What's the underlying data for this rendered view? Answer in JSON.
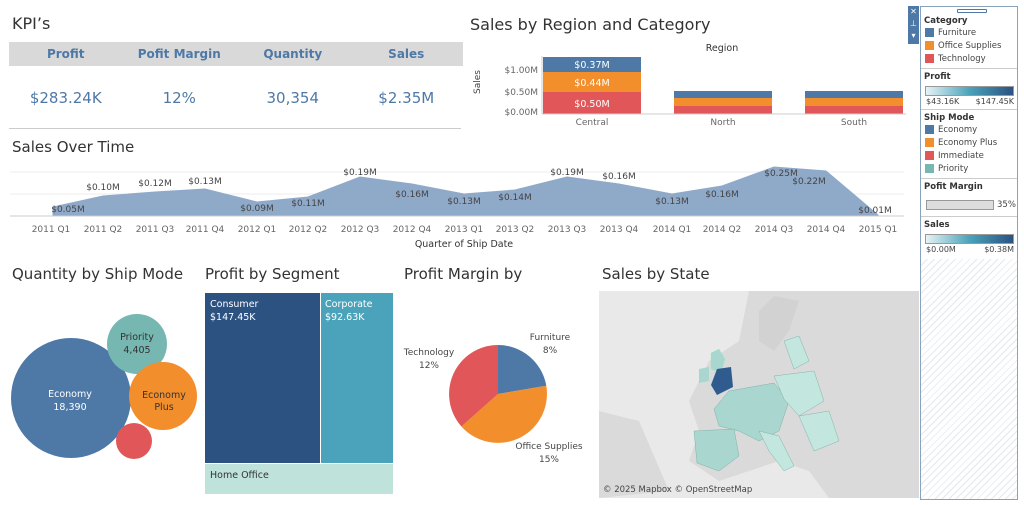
{
  "kpi": {
    "title": "KPI’s",
    "headers": [
      "Profit",
      "Pofit Margin",
      "Quantity",
      "Sales"
    ],
    "values": [
      "$283.24K",
      "12%",
      "30,354",
      "$2.35M"
    ]
  },
  "region_chart": {
    "title": "Sales by Region and Category",
    "header": "Region",
    "ylabel": "Sales",
    "yticks": [
      "$1.00M",
      "$0.50M",
      "$0.00M"
    ],
    "regions": [
      "Central",
      "North",
      "South"
    ],
    "central_labels": [
      "$0.37M",
      "$0.44M",
      "$0.50M"
    ]
  },
  "time_chart": {
    "title": "Sales Over Time",
    "xlabel": "Quarter of Ship Date",
    "quarters": [
      "2011 Q1",
      "2011 Q2",
      "2011 Q3",
      "2011 Q4",
      "2012 Q1",
      "2012 Q2",
      "2012 Q3",
      "2012 Q4",
      "2013 Q1",
      "2013 Q2",
      "2013 Q3",
      "2013 Q4",
      "2014 Q1",
      "2014 Q2",
      "2014 Q3",
      "2014 Q4",
      "2015 Q1"
    ],
    "value_labels": [
      "$0.05M",
      "$0.10M",
      "$0.12M",
      "$0.13M",
      "$0.09M",
      "$0.11M",
      "$0.19M",
      "$0.16M",
      "$0.13M",
      "$0.14M",
      "$0.19M",
      "$0.16M",
      "$0.13M",
      "$0.16M",
      "$0.25M",
      "$0.22M",
      "$0.01M"
    ]
  },
  "ship_mode": {
    "title": "Quantity by Ship Mode",
    "economy_label": "Economy",
    "economy_value": "18,390",
    "priority_label": "Priority",
    "priority_value": "4,405",
    "economy_plus_label_1": "Economy",
    "economy_plus_label_2": "Plus"
  },
  "segment": {
    "title": "Profit by Segment",
    "consumer_label": "Consumer",
    "consumer_value": "$147.45K",
    "corporate_label": "Corporate",
    "corporate_value": "$92.63K",
    "home_office_label": "Home Office"
  },
  "margin": {
    "title": "Profit Margin by",
    "furniture_label": "Furniture",
    "furniture_value": "8%",
    "technology_label": "Technology",
    "technology_value": "12%",
    "office_label": "Office Supplies",
    "office_value": "15%"
  },
  "state": {
    "title": "Sales by State",
    "attribution": "© 2025 Mapbox © OpenStreetMap"
  },
  "legend": {
    "category_title": "Category",
    "categories": [
      "Furniture",
      "Office Supplies",
      "Technology"
    ],
    "profit_title": "Profit",
    "profit_min": "$43.16K",
    "profit_max": "$147.45K",
    "ship_mode_title": "Ship Mode",
    "ship_modes": [
      "Economy",
      "Economy Plus",
      "Immediate",
      "Priority"
    ],
    "margin_title": "Pofit Margin",
    "margin_value": "35%",
    "sales_title": "Sales",
    "sales_min": "$0.00M",
    "sales_max": "$0.38M"
  },
  "colors": {
    "blue": "#4e79a7",
    "orange": "#f28e2b",
    "red": "#e15759",
    "teal": "#76b7b2",
    "dark_blue": "#2c5282",
    "mid_teal": "#4aa3ba",
    "light_teal": "#bfe3db",
    "area": "#8fa9c9"
  }
}
